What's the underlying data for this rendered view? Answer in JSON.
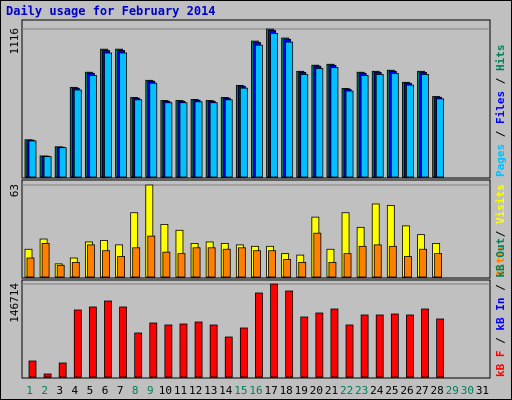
{
  "chart_data": [
    {
      "type": "bar",
      "title": "Daily usage for February 2014",
      "legend_separator": " / ",
      "series": [
        {
          "name": "Pages",
          "color": "#00c0ff",
          "values": [
            272,
            154,
            221,
            656,
            766,
            935,
            935,
            582,
            707,
            560,
            560,
            567,
            560,
            582,
            670,
            994,
            1083,
            1017,
            773,
            818,
            825,
            648,
            766,
            773,
            781,
            693,
            773,
            589,
            null,
            null,
            null
          ]
        },
        {
          "name": "Files",
          "color": "#0000ff",
          "values": [
            278,
            157,
            225,
            669,
            782,
            954,
            954,
            594,
            722,
            571,
            571,
            579,
            571,
            594,
            684,
            1015,
            1105,
            1038,
            789,
            835,
            842,
            661,
            782,
            789,
            797,
            707,
            789,
            601,
            null,
            null,
            null
          ]
        },
        {
          "name": "Hits",
          "color": "#00805c",
          "values": [
            281,
            159,
            228,
            676,
            790,
            964,
            964,
            600,
            729,
            577,
            577,
            585,
            577,
            600,
            691,
            1025,
            1116,
            1048,
            797,
            843,
            850,
            668,
            790,
            797,
            805,
            714,
            797,
            607,
            null,
            null,
            null
          ]
        }
      ],
      "ylim": [
        0,
        1116
      ],
      "yticks": [
        1116
      ]
    },
    {
      "type": "bar",
      "legend_separator": " / ",
      "series": [
        {
          "name": "Sites",
          "color": "#ff8000",
          "values": [
            13,
            23,
            8,
            10,
            22,
            18,
            14,
            20,
            28,
            17,
            16,
            20,
            20,
            19,
            20,
            18,
            18,
            12,
            10,
            30,
            10,
            16,
            21,
            22,
            21,
            14,
            19,
            16,
            null,
            null,
            null
          ]
        },
        {
          "name": "Visits",
          "color": "#ffff00",
          "values": [
            19,
            26,
            9,
            13,
            24,
            25,
            22,
            44,
            63,
            36,
            32,
            23,
            24,
            23,
            22,
            21,
            21,
            16,
            15,
            41,
            19,
            44,
            34,
            50,
            49,
            35,
            29,
            23,
            null,
            null,
            null
          ]
        }
      ],
      "ylim": [
        0,
        63
      ],
      "yticks": [
        63
      ]
    },
    {
      "type": "bar",
      "legend_separator": " / ",
      "categories": [
        "1",
        "2",
        "3",
        "4",
        "5",
        "6",
        "7",
        "8",
        "9",
        "10",
        "11",
        "12",
        "13",
        "14",
        "15",
        "16",
        "17",
        "18",
        "19",
        "20",
        "21",
        "22",
        "23",
        "24",
        "25",
        "26",
        "27",
        "28",
        "29",
        "30",
        "31"
      ],
      "label_colors": [
        "#00805c",
        "#00805c",
        "#000",
        "#000",
        "#000",
        "#000",
        "#000",
        "#00805c",
        "#00805c",
        "#000",
        "#000",
        "#000",
        "#000",
        "#000",
        "#00805c",
        "#00805c",
        "#000",
        "#000",
        "#000",
        "#000",
        "#000",
        "#00805c",
        "#00805c",
        "#000",
        "#000",
        "#000",
        "#000",
        "#000",
        "#00805c",
        "#00805c",
        "#000"
      ],
      "series": [
        {
          "name": "kB F",
          "color": "#ff0000",
          "values": [
            25241,
            4733,
            22086,
            105697,
            110430,
            119896,
            110430,
            69413,
            85188,
            82034,
            83612,
            86766,
            82034,
            63103,
            77301,
            132516,
            146714,
            135671,
            94654,
            100965,
            107274,
            82034,
            97809,
            97809,
            99387,
            97809,
            107274,
            91499,
            null,
            null,
            null
          ]
        },
        {
          "name": "kB In",
          "color": "#0000ff",
          "values": [
            null,
            null,
            null,
            null,
            null,
            null,
            null,
            null,
            null,
            null,
            null,
            null,
            null,
            null,
            null,
            null,
            null,
            null,
            null,
            null,
            null,
            null,
            null,
            null,
            null,
            null,
            null,
            null,
            null,
            null,
            null
          ]
        },
        {
          "name": "kB Out",
          "color": "#00805c",
          "values": [
            null,
            null,
            null,
            null,
            null,
            null,
            null,
            null,
            null,
            null,
            null,
            null,
            null,
            null,
            null,
            null,
            null,
            null,
            null,
            null,
            null,
            null,
            null,
            null,
            null,
            null,
            null,
            null,
            null,
            null,
            null
          ]
        }
      ],
      "ylim": [
        0,
        146714
      ],
      "yticks": [
        146714
      ]
    }
  ]
}
